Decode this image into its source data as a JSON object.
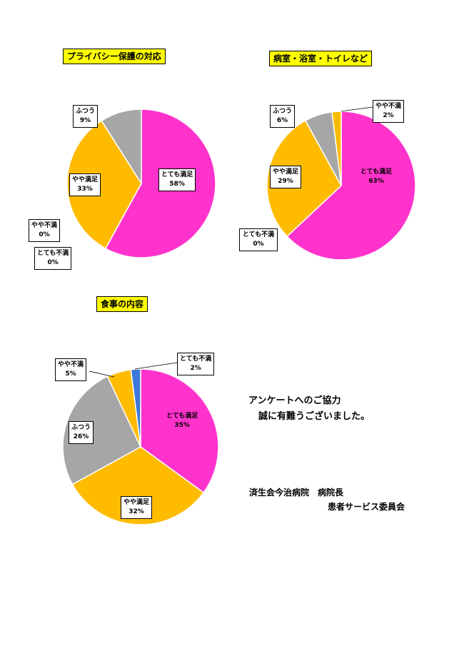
{
  "colors": {
    "totemo_manzoku": "#ff33cc",
    "yaya_manzoku": "#ffbb00",
    "futsuu": "#a6a6a6",
    "yaya_fuman": "#ffbb00",
    "totemo_fuman": "#3c78d8"
  },
  "chart_data": [
    {
      "type": "pie",
      "title": "プライバシー保護の対応",
      "slices": [
        {
          "name": "とても満足",
          "value": 58,
          "label": "58%",
          "color": "#ff33cc"
        },
        {
          "name": "やや満足",
          "value": 33,
          "label": "33%",
          "color": "#ffbb00"
        },
        {
          "name": "ふつう",
          "value": 9,
          "label": "9%",
          "color": "#a6a6a6"
        },
        {
          "name": "やや不満",
          "value": 0,
          "label": "0%",
          "color": "#ffbb00"
        },
        {
          "name": "とても不満",
          "value": 0,
          "label": "0%",
          "color": "#3c78d8"
        }
      ]
    },
    {
      "type": "pie",
      "title": "病室・浴室・トイレなど",
      "slices": [
        {
          "name": "とても満足",
          "value": 63,
          "label": "63%",
          "color": "#ff33cc"
        },
        {
          "name": "やや満足",
          "value": 29,
          "label": "29%",
          "color": "#ffbb00"
        },
        {
          "name": "ふつう",
          "value": 6,
          "label": "6%",
          "color": "#a6a6a6"
        },
        {
          "name": "やや不満",
          "value": 2,
          "label": "2%",
          "color": "#ffbb00"
        },
        {
          "name": "とても不満",
          "value": 0,
          "label": "0%",
          "color": "#3c78d8"
        }
      ]
    },
    {
      "type": "pie",
      "title": "食事の内容",
      "slices": [
        {
          "name": "とても満足",
          "value": 35,
          "label": "35%",
          "color": "#ff33cc"
        },
        {
          "name": "やや満足",
          "value": 32,
          "label": "32%",
          "color": "#ffbb00"
        },
        {
          "name": "ふつう",
          "value": 26,
          "label": "26%",
          "color": "#a6a6a6"
        },
        {
          "name": "やや不満",
          "value": 5,
          "label": "5%",
          "color": "#ffbb00"
        },
        {
          "name": "とても不満",
          "value": 2,
          "label": "2%",
          "color": "#3c78d8"
        }
      ]
    }
  ],
  "message": {
    "line1": "アンケートへのご協力",
    "line2": "誠に有難うございました。"
  },
  "footer": {
    "line1": "済生会今治病院　病院長",
    "line2": "患者サービス委員会"
  }
}
